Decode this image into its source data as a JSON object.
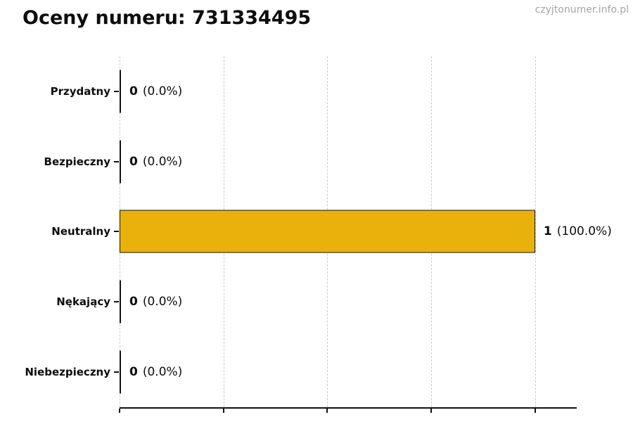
{
  "page": {
    "title": "Oceny numeru: 731334495",
    "watermark": "czyjtonumer.info.pl"
  },
  "chart_data": {
    "type": "bar",
    "orientation": "horizontal",
    "title": "Oceny numeru: 731334495",
    "categories": [
      "Przydatny",
      "Bezpieczny",
      "Neutralny",
      "Nękający",
      "Niebezpieczny"
    ],
    "values": [
      0,
      0,
      1,
      0,
      0
    ],
    "percent_labels": [
      "(0.0%)",
      "(0.0%)",
      "(100.0%)",
      "(0.0%)",
      "(0.0%)"
    ],
    "value_labels": [
      "0 (0.0%)",
      "0 (0.0%)",
      "1 (100.0%)",
      "0 (0.0%)",
      "0 (0.0%)"
    ],
    "bar_color": "#e8b10c",
    "bar_edge_color": "#111111",
    "zero_bar_color": "#111111",
    "xlim": [
      0,
      1.1
    ],
    "xticks": [
      0,
      0.25,
      0.5,
      0.75,
      1.0
    ],
    "xtick_labels_visible": false,
    "grid": "vertical-dashed",
    "grid_color": "#cbcbcb",
    "legend": "none"
  }
}
